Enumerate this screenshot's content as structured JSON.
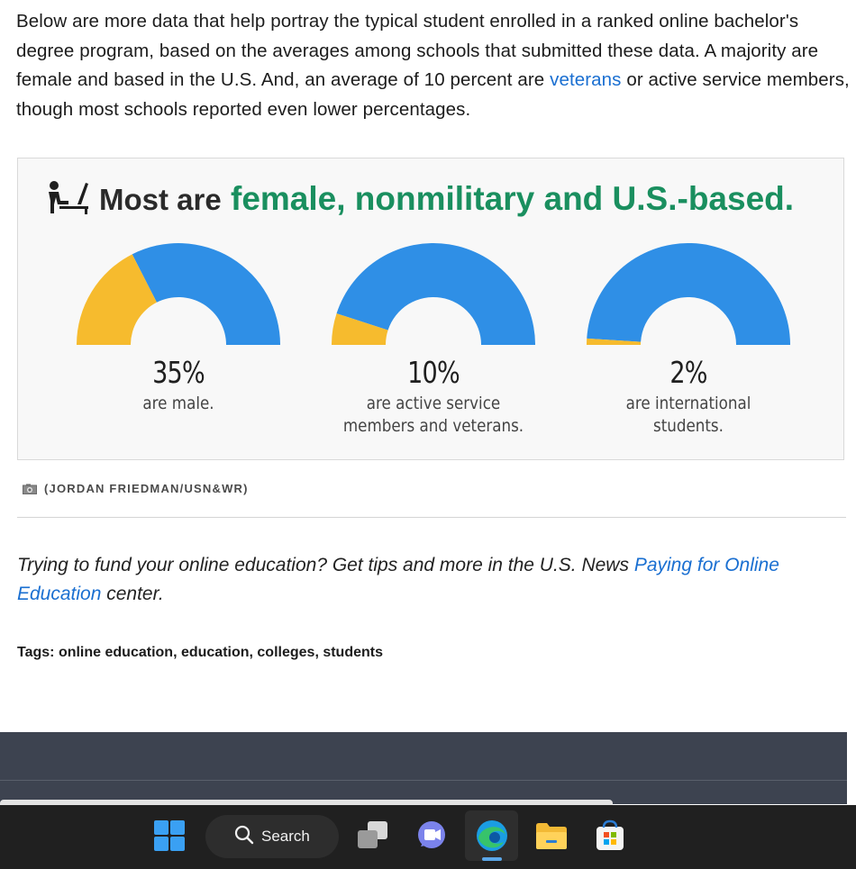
{
  "article": {
    "intro_part1": "Below are more data that help portray the typical student enrolled in a ranked online bachelor's degree program, based on the averages among schools that submitted these data. A majority are female and based in the U.S. And, an average of 10 percent are ",
    "intro_link": "veterans",
    "intro_part2": " or active service members, though most schools reported even lower percentages.",
    "figure_credit": "(JORDAN FRIEDMAN/USN&WR)",
    "promo_part1": "Trying to fund your online education? Get tips and more in the U.S. News ",
    "promo_link": "Paying for Online Education",
    "promo_part2": " center.",
    "tags_label": "Tags:",
    "tags": [
      "online education",
      "education",
      "colleges",
      "students"
    ]
  },
  "chart_data": {
    "type": "pie",
    "title_lead": "Most are",
    "title_highlight": "female, nonmilitary and U.S.-based.",
    "colors": {
      "highlight": "#f6bb2e",
      "rest": "#2f8fe6",
      "title_accent": "#1a8f5f"
    },
    "gauges": [
      {
        "value": 35,
        "label": "35%",
        "caption_line1": "are male.",
        "caption_line2": ""
      },
      {
        "value": 10,
        "label": "10%",
        "caption_line1": "are active service",
        "caption_line2": "members and veterans."
      },
      {
        "value": 2,
        "label": "2%",
        "caption_line1": "are international",
        "caption_line2": "students."
      }
    ]
  },
  "taskbar": {
    "search_label": "Search",
    "icons": [
      "windows-start-icon",
      "search-icon",
      "task-view-icon",
      "teams-chat-icon",
      "edge-browser-icon",
      "file-explorer-icon",
      "microsoft-store-icon"
    ]
  }
}
